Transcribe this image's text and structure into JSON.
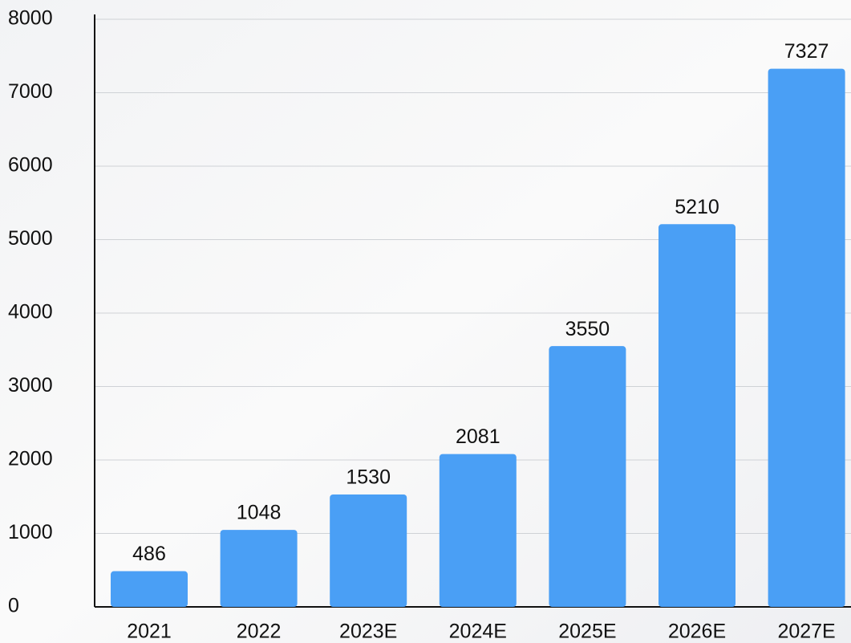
{
  "chart_data": {
    "type": "bar",
    "categories": [
      "2021",
      "2022",
      "2023E",
      "2024E",
      "2025E",
      "2026E",
      "2027E"
    ],
    "values": [
      486,
      1048,
      1530,
      2081,
      3550,
      5210,
      7327
    ],
    "color": "#4a9ff5",
    "ylim": [
      0,
      8000
    ],
    "yticks": [
      0,
      1000,
      2000,
      3000,
      4000,
      5000,
      6000,
      7000,
      8000
    ],
    "grid": true
  }
}
